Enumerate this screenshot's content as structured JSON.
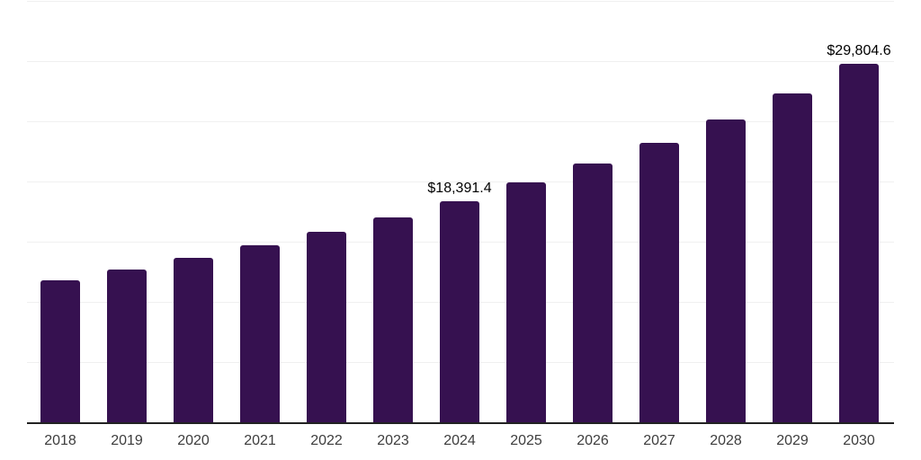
{
  "chart_data": {
    "type": "bar",
    "title": "",
    "xlabel": "",
    "ylabel": "",
    "categories": [
      "2018",
      "2019",
      "2020",
      "2021",
      "2022",
      "2023",
      "2024",
      "2025",
      "2026",
      "2027",
      "2028",
      "2029",
      "2030"
    ],
    "values": [
      11800,
      12690,
      13630,
      14700,
      15820,
      17010,
      18391.4,
      19930,
      21460,
      23210,
      25120,
      27290,
      29804.6
    ],
    "data_labels": [
      {
        "index": 6,
        "text": "$18,391.4"
      },
      {
        "index": 12,
        "text": "$29,804.6"
      }
    ],
    "ylim": [
      0,
      35000
    ],
    "gridline_step": 5000,
    "grid": true,
    "y_tick_labels_visible": false,
    "legend": "none",
    "colors": {
      "bar": "#361150",
      "axis_line": "#222222",
      "gridline": "#f0f0f0",
      "data_label": "#000000",
      "tick_label": "#3d3d3d",
      "background": "#ffffff"
    }
  }
}
